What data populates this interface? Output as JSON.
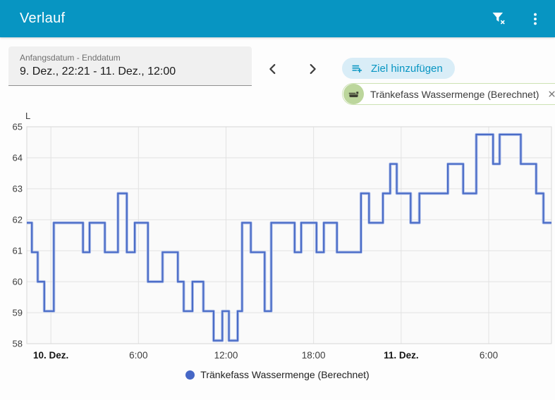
{
  "app_bar": {
    "title": "Verlauf",
    "actions": [
      {
        "name": "filter-remove",
        "icon": "filter-remove-icon"
      },
      {
        "name": "overflow-menu",
        "icon": "dots-vertical-icon"
      }
    ]
  },
  "controls": {
    "date_field": {
      "label": "Anfangsdatum - Enddatum",
      "value": "9. Dez., 22:21 - 11. Dez., 12:00"
    },
    "prev_icon": "chevron-left-icon",
    "next_icon": "chevron-right-icon",
    "add_target": {
      "label": "Ziel hinzufügen",
      "icon": "playlist-plus-icon"
    },
    "entity_chip": {
      "label": "Tränkefass Wassermenge (Berechnet)",
      "icon": "water-trough-icon",
      "close_icon": "close-icon"
    }
  },
  "legend": {
    "items": [
      {
        "label": "Tränkefass Wassermenge (Berechnet)",
        "color": "#4667c6"
      }
    ]
  },
  "colors": {
    "app_bar": "#0795c2",
    "accent_text": "#0795c2",
    "button_bg": "#d9edf7",
    "chip_border": "#cde2b4",
    "chip_avatar": "#bcd69c",
    "series_line": "#4a6cc7",
    "series_halo": "#bac8ed",
    "legend_dot": "#4667c6",
    "grid": "#e2e2e2",
    "plot_border": "#d7d7d7",
    "plot_bg": "#fafafa"
  },
  "chart_data": {
    "type": "line",
    "step": "after",
    "title": "",
    "unit": "L",
    "ylabel": "L",
    "xlabel": "",
    "grid": true,
    "legend_position": "bottom",
    "ylim": [
      58,
      65
    ],
    "yticks": [
      58,
      59,
      60,
      61,
      62,
      63,
      64,
      65
    ],
    "x_axis": "hours relative to 10. Dez. 00:00 (negative = 9. Dez.)",
    "xlim": [
      -1.65,
      34.3
    ],
    "xticks": [
      {
        "t": 0,
        "label": "10. Dez.",
        "bold": true
      },
      {
        "t": 6,
        "label": "6:00",
        "bold": false
      },
      {
        "t": 12,
        "label": "12:00",
        "bold": false
      },
      {
        "t": 18,
        "label": "18:00",
        "bold": false
      },
      {
        "t": 24,
        "label": "11. Dez.",
        "bold": true
      },
      {
        "t": 30,
        "label": "6:00",
        "bold": false
      }
    ],
    "series": [
      {
        "name": "Tränkefass Wassermenge (Berechnet)",
        "color": "#4a6cc7",
        "points": [
          [
            -1.65,
            61.9
          ],
          [
            -1.3,
            60.95
          ],
          [
            -0.9,
            60.0
          ],
          [
            -0.45,
            59.05
          ],
          [
            0.2,
            61.9
          ],
          [
            2.2,
            60.95
          ],
          [
            2.65,
            61.9
          ],
          [
            3.7,
            60.95
          ],
          [
            4.6,
            62.85
          ],
          [
            5.2,
            60.95
          ],
          [
            5.75,
            61.9
          ],
          [
            6.65,
            60.0
          ],
          [
            7.65,
            60.95
          ],
          [
            8.7,
            60.0
          ],
          [
            9.1,
            59.05
          ],
          [
            9.7,
            60.0
          ],
          [
            10.45,
            59.05
          ],
          [
            11.15,
            58.1
          ],
          [
            11.75,
            59.05
          ],
          [
            12.2,
            58.1
          ],
          [
            12.8,
            59.05
          ],
          [
            13.1,
            61.9
          ],
          [
            13.7,
            60.95
          ],
          [
            14.65,
            59.05
          ],
          [
            15.1,
            61.9
          ],
          [
            16.7,
            60.95
          ],
          [
            17.15,
            61.9
          ],
          [
            18.2,
            60.95
          ],
          [
            18.7,
            61.9
          ],
          [
            19.6,
            60.95
          ],
          [
            21.25,
            62.85
          ],
          [
            21.8,
            61.9
          ],
          [
            22.75,
            62.85
          ],
          [
            23.25,
            63.8
          ],
          [
            23.7,
            62.85
          ],
          [
            24.65,
            61.9
          ],
          [
            25.25,
            62.85
          ],
          [
            27.2,
            63.8
          ],
          [
            28.25,
            62.85
          ],
          [
            29.15,
            64.75
          ],
          [
            30.3,
            63.8
          ],
          [
            30.75,
            64.75
          ],
          [
            32.2,
            63.8
          ],
          [
            33.25,
            62.85
          ],
          [
            33.75,
            61.9
          ],
          [
            34.3,
            61.9
          ]
        ]
      }
    ]
  }
}
